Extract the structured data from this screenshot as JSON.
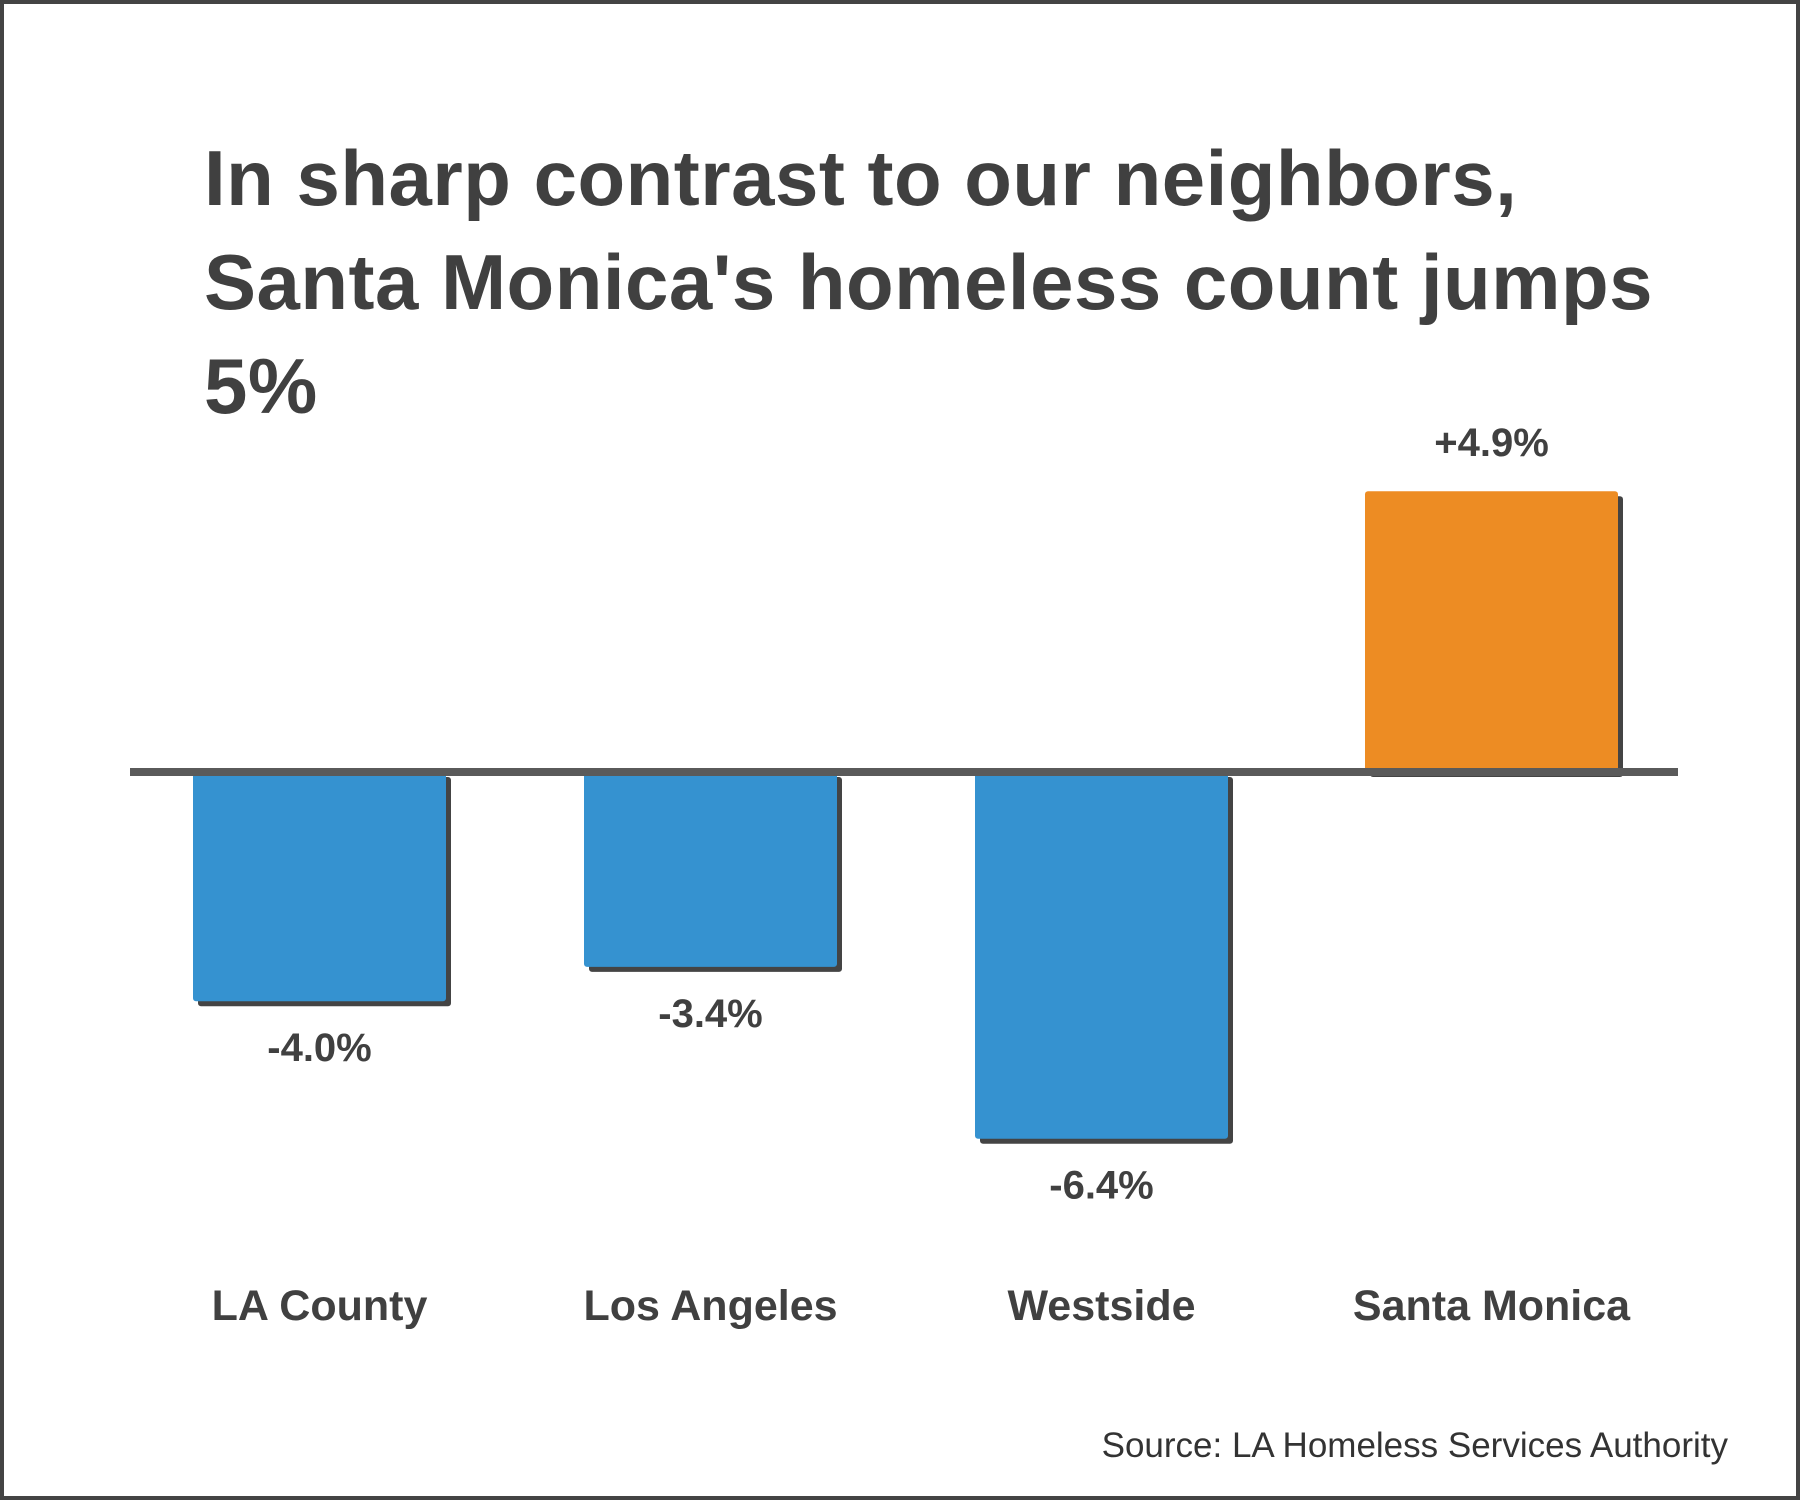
{
  "chart_data": {
    "type": "bar",
    "title": "In sharp contrast to our neighbors, Santa Monica's homeless count jumps 5%",
    "categories": [
      "LA County",
      "Los Angeles",
      "Westside",
      "Santa Monica"
    ],
    "values": [
      -4.0,
      -3.4,
      -6.4,
      4.9
    ],
    "data_labels": [
      "-4.0%",
      "-3.4%",
      "-6.4%",
      "+4.9%"
    ],
    "bar_colors": [
      "#3592d0",
      "#3592d0",
      "#3592d0",
      "#ed8c23"
    ],
    "xlabel": "",
    "ylabel": "",
    "grid": false,
    "source": "Source: LA Homeless Services Authority"
  }
}
